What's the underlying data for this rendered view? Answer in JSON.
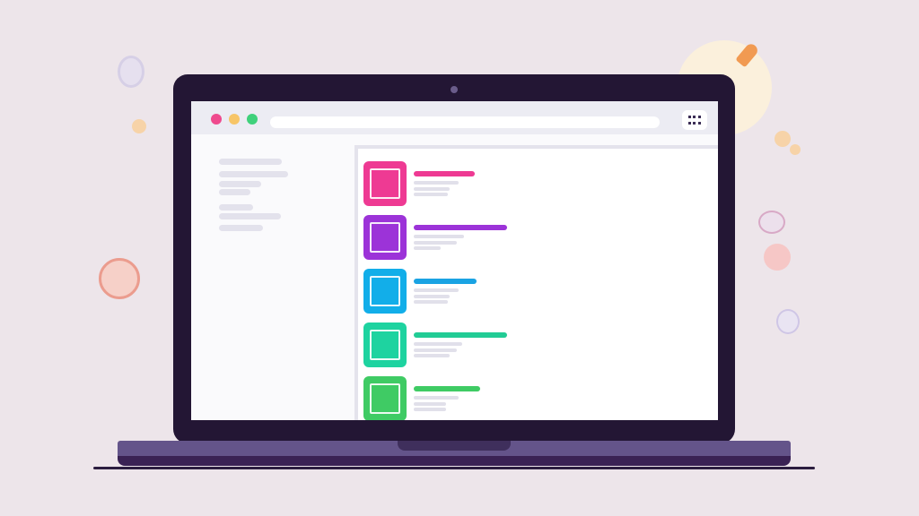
{
  "colors": {
    "background": "#ede5ea",
    "laptop_frame": "#231634",
    "laptop_base": "#64548a",
    "window_dots": [
      "#ef4a8e",
      "#f7c567",
      "#3fd17b"
    ],
    "items": [
      {
        "icon": "#ee3a93",
        "title_bar": "#ee3a93"
      },
      {
        "icon": "#9c33d8",
        "title_bar": "#9c33d8"
      },
      {
        "icon": "#12aee9",
        "title_bar": "#1aa3e3"
      },
      {
        "icon": "#1ed3a0",
        "title_bar": "#22cc95"
      },
      {
        "icon": "#3fcb64",
        "title_bar": "#3fcb64"
      }
    ]
  },
  "icons": {
    "menu": "menu-grid-icon",
    "item": "image-placeholder-icon"
  }
}
